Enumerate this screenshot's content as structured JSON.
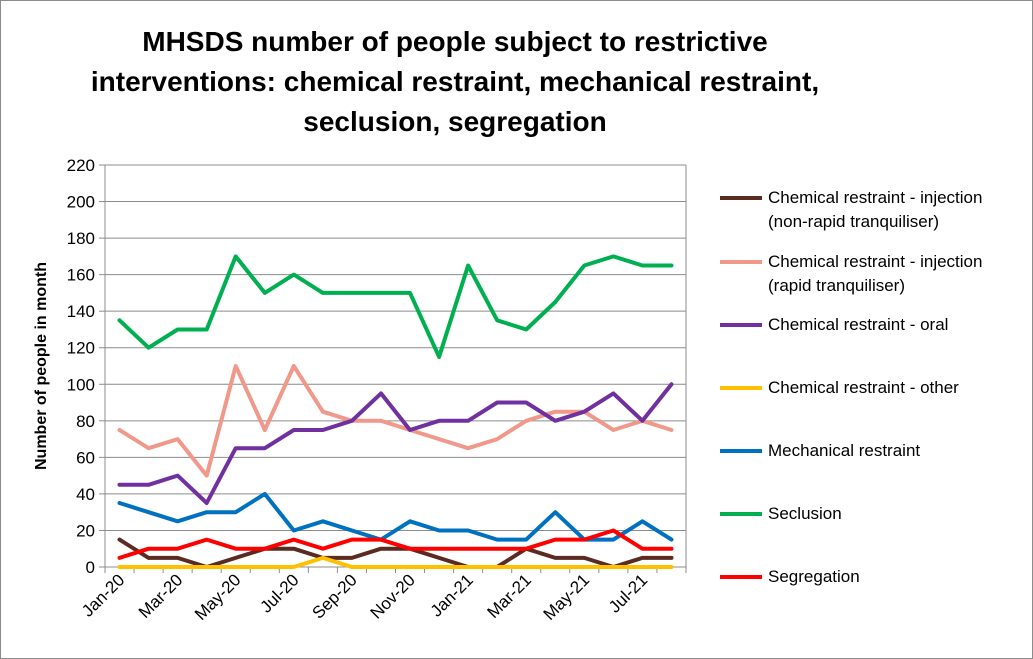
{
  "chart_data": {
    "type": "line",
    "title": "MHSDS number of people subject to restrictive interventions: chemical restraint, mechanical restraint, seclusion, segregation",
    "xlabel": "",
    "ylabel": "Number of people in month",
    "ylim": [
      0,
      220
    ],
    "yticks": [
      0,
      20,
      40,
      60,
      80,
      100,
      120,
      140,
      160,
      180,
      200,
      220
    ],
    "grid": true,
    "legend_position": "right",
    "categories": [
      "Jan-20",
      "Feb-20",
      "Mar-20",
      "Apr-20",
      "May-20",
      "Jun-20",
      "Jul-20",
      "Aug-20",
      "Sep-20",
      "Oct-20",
      "Nov-20",
      "Dec-20",
      "Jan-21",
      "Feb-21",
      "Mar-21",
      "Apr-21",
      "May-21",
      "Jun-21",
      "Jul-21",
      "Aug-21"
    ],
    "tick_labels": [
      "Jan-20",
      "",
      "Mar-20",
      "",
      "May-20",
      "",
      "Jul-20",
      "",
      "Sep-20",
      "",
      "Nov-20",
      "",
      "Jan-21",
      "",
      "Mar-21",
      "",
      "May-21",
      "",
      "Jul-21",
      ""
    ],
    "series": [
      {
        "name": "Chemical restraint - injection\n(non-rapid tranquiliser)",
        "color": "#5b2a20",
        "values": [
          15,
          5,
          5,
          0,
          5,
          10,
          10,
          5,
          5,
          10,
          10,
          5,
          0,
          0,
          10,
          5,
          5,
          0,
          5,
          5
        ]
      },
      {
        "name": "Chemical restraint - injection\n(rapid tranquiliser)",
        "color": "#f0988a",
        "values": [
          75,
          65,
          70,
          50,
          110,
          75,
          110,
          85,
          80,
          80,
          75,
          70,
          65,
          70,
          80,
          85,
          85,
          75,
          80,
          75
        ]
      },
      {
        "name": "Chemical restraint - oral",
        "color": "#7030a0",
        "values": [
          45,
          45,
          50,
          35,
          65,
          65,
          75,
          75,
          80,
          95,
          75,
          80,
          80,
          90,
          90,
          80,
          85,
          95,
          80,
          100
        ]
      },
      {
        "name": "Chemical restraint - other",
        "color": "#ffc000",
        "values": [
          0,
          0,
          0,
          0,
          0,
          0,
          0,
          5,
          0,
          0,
          0,
          0,
          0,
          0,
          0,
          0,
          0,
          0,
          0,
          0
        ]
      },
      {
        "name": "Mechanical restraint",
        "color": "#0070c0",
        "values": [
          35,
          30,
          25,
          30,
          30,
          40,
          20,
          25,
          20,
          15,
          25,
          20,
          20,
          15,
          15,
          30,
          15,
          15,
          25,
          15
        ]
      },
      {
        "name": "Seclusion",
        "color": "#00b050",
        "values": [
          135,
          120,
          130,
          130,
          170,
          150,
          160,
          150,
          150,
          150,
          150,
          115,
          165,
          135,
          130,
          145,
          165,
          170,
          165,
          165
        ]
      },
      {
        "name": "Segregation",
        "color": "#ff0000",
        "values": [
          5,
          10,
          10,
          15,
          10,
          10,
          15,
          10,
          15,
          15,
          10,
          10,
          10,
          10,
          10,
          15,
          15,
          20,
          10,
          10
        ]
      }
    ]
  }
}
